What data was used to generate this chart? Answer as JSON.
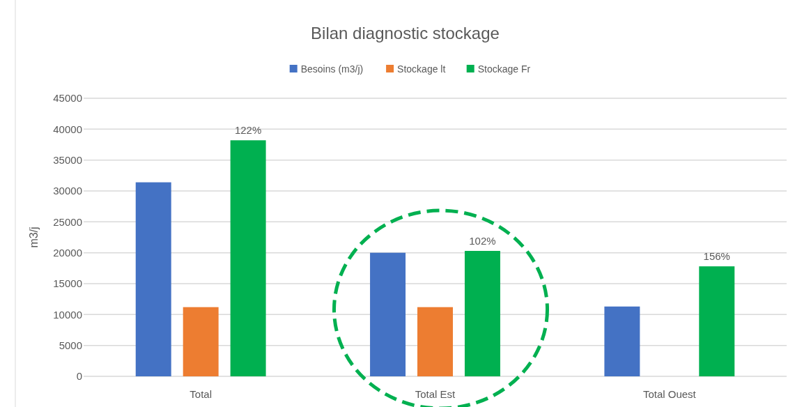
{
  "chart_data": {
    "type": "bar",
    "title": "Bilan diagnostic stockage",
    "ylabel": "m3/j",
    "categories": [
      "Total",
      "Total Est",
      "Total Ouest"
    ],
    "series": [
      {
        "name": "Besoins (m3/j)",
        "color": "#4472c4",
        "values": [
          31400,
          20000,
          11300
        ]
      },
      {
        "name": "Stockage lt",
        "color": "#ed7d31",
        "values": [
          11200,
          11200,
          null
        ]
      },
      {
        "name": "Stockage Fr",
        "color": "#00b050",
        "values": [
          38200,
          20300,
          17800
        ]
      }
    ],
    "annotations": [
      "122%",
      "102%",
      "156%"
    ],
    "ylim": [
      0,
      45000
    ],
    "yticks": [
      0,
      5000,
      10000,
      15000,
      20000,
      25000,
      30000,
      35000,
      40000,
      45000
    ],
    "grid": "y",
    "legend": "top"
  }
}
